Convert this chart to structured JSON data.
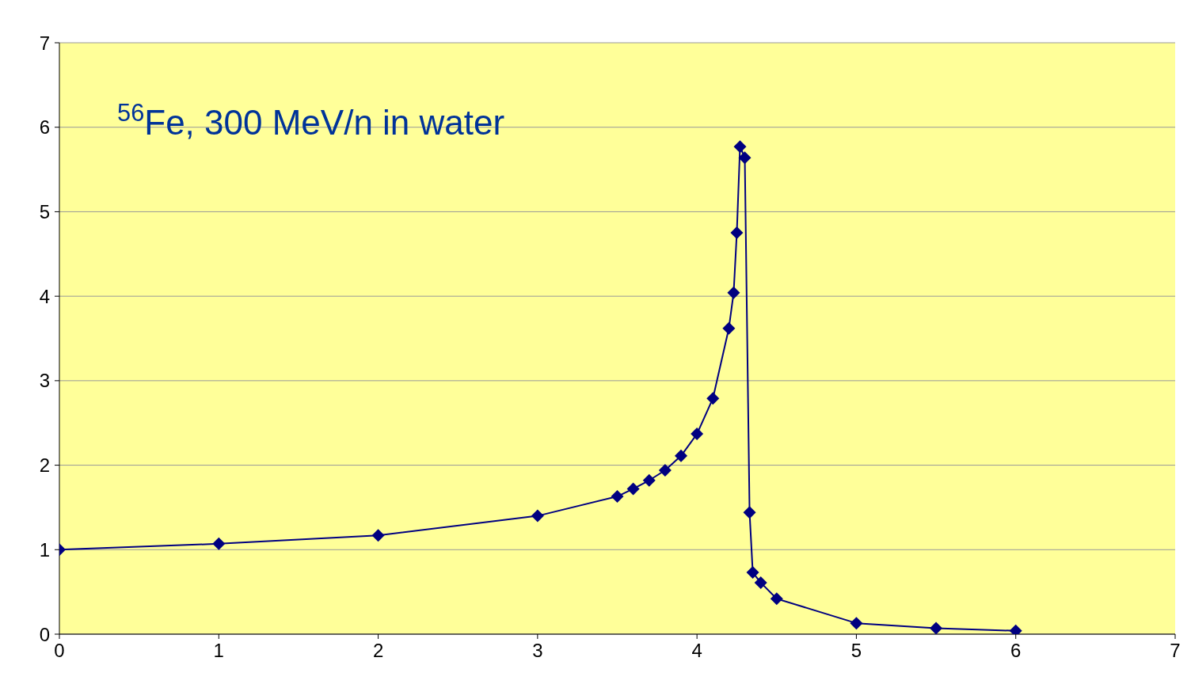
{
  "chart_data": {
    "type": "line",
    "title": "$^{56}$Fe, 300 MeV/n in water",
    "x": [
      0,
      1,
      2,
      3,
      3.5,
      3.6,
      3.7,
      3.8,
      3.9,
      4.0,
      4.1,
      4.2,
      4.23,
      4.25,
      4.27,
      4.3,
      4.33,
      4.35,
      4.4,
      4.5,
      5.0,
      5.5,
      6.0
    ],
    "series": [
      {
        "color": "#000080",
        "values": [
          1.0,
          1.07,
          1.17,
          1.4,
          1.63,
          1.72,
          1.82,
          1.94,
          2.11,
          2.37,
          2.79,
          3.62,
          4.04,
          4.75,
          5.77,
          5.64,
          1.44,
          0.73,
          0.61,
          0.42,
          0.13,
          0.07,
          0.04
        ]
      }
    ],
    "xlim": [
      0,
      7
    ],
    "xticks": [
      0,
      1,
      2,
      3,
      4,
      5,
      6,
      7
    ],
    "ylim": [
      0,
      7
    ],
    "yticks": [
      0,
      1,
      2,
      3,
      4,
      5,
      6,
      7
    ],
    "grid": "y",
    "legend": false,
    "marker": "diamond",
    "line_style": "solid"
  }
}
